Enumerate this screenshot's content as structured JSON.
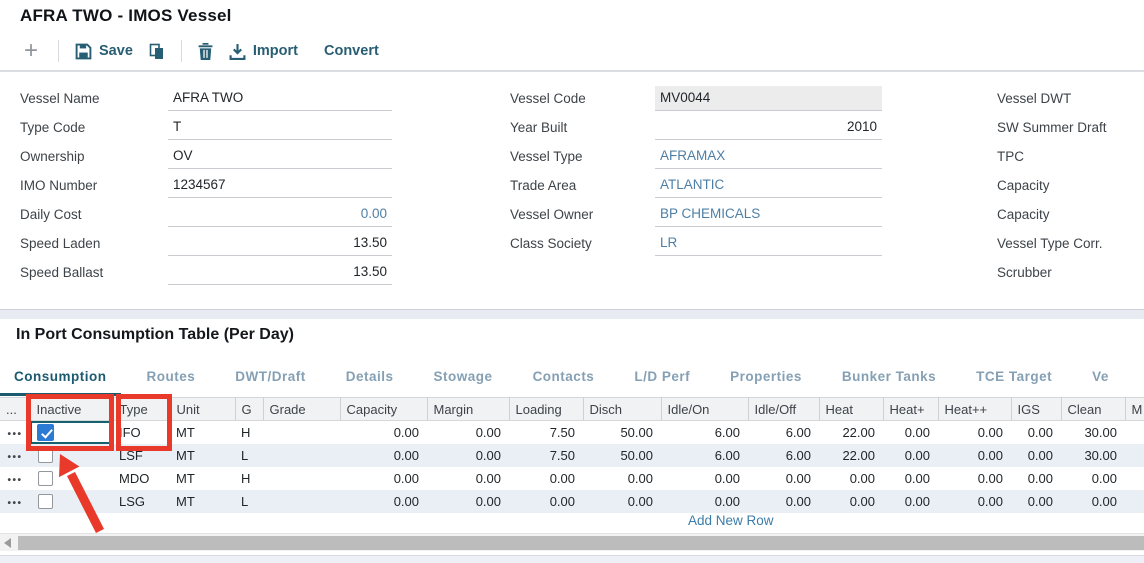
{
  "window": {
    "title": "AFRA TWO - IMOS Vessel"
  },
  "toolbar": {
    "save_label": "Save",
    "import_label": "Import",
    "convert_label": "Convert"
  },
  "form": {
    "left": [
      {
        "label": "Vessel Name",
        "value": "AFRA TWO"
      },
      {
        "label": "Type Code",
        "value": "T"
      },
      {
        "label": "Ownership",
        "value": "OV"
      },
      {
        "label": "IMO Number",
        "value": "1234567"
      },
      {
        "label": "Daily Cost",
        "value": "0.00"
      },
      {
        "label": "Speed Laden",
        "value": "13.50"
      },
      {
        "label": "Speed Ballast",
        "value": "13.50"
      }
    ],
    "middle": [
      {
        "label": "Vessel Code",
        "value": "MV0044"
      },
      {
        "label": "Year Built",
        "value": "2010"
      },
      {
        "label": "Vessel Type",
        "value": "AFRAMAX"
      },
      {
        "label": "Trade Area",
        "value": "ATLANTIC"
      },
      {
        "label": "Vessel Owner",
        "value": "BP CHEMICALS"
      },
      {
        "label": "Class Society",
        "value": "LR"
      }
    ],
    "right_labels": [
      "Vessel DWT",
      "SW Summer Draft",
      "TPC",
      "Capacity",
      "Capacity",
      "Vessel Type Corr.",
      "Scrubber"
    ]
  },
  "section_title": "In Port Consumption Table (Per Day)",
  "tabs": [
    "Consumption",
    "Routes",
    "DWT/Draft",
    "Details",
    "Stowage",
    "Contacts",
    "L/D Perf",
    "Properties",
    "Bunker Tanks",
    "TCE Target",
    "Ve"
  ],
  "active_tab": "Consumption",
  "table": {
    "columns": [
      "...",
      "Inactive",
      "Type",
      "Unit",
      "G",
      "Grade",
      "Capacity",
      "Margin",
      "Loading",
      "Disch",
      "Idle/On",
      "Idle/Off",
      "Heat",
      "Heat+",
      "Heat++",
      "IGS",
      "Clean",
      "M"
    ],
    "rows": [
      {
        "inactive": true,
        "focused": true,
        "cells": [
          "IFO",
          "MT",
          "H",
          "",
          "0.00",
          "0.00",
          "7.50",
          "50.00",
          "6.00",
          "6.00",
          "22.00",
          "0.00",
          "0.00",
          "0.00",
          "30.00",
          ""
        ]
      },
      {
        "inactive": false,
        "focused": false,
        "cells": [
          "LSF",
          "MT",
          "L",
          "",
          "0.00",
          "0.00",
          "7.50",
          "50.00",
          "6.00",
          "6.00",
          "22.00",
          "0.00",
          "0.00",
          "0.00",
          "30.00",
          ""
        ]
      },
      {
        "inactive": false,
        "focused": false,
        "cells": [
          "MDO",
          "MT",
          "H",
          "",
          "0.00",
          "0.00",
          "0.00",
          "0.00",
          "0.00",
          "0.00",
          "0.00",
          "0.00",
          "0.00",
          "0.00",
          "0.00",
          ""
        ]
      },
      {
        "inactive": false,
        "focused": false,
        "cells": [
          "LSG",
          "MT",
          "L",
          "",
          "0.00",
          "0.00",
          "0.00",
          "0.00",
          "0.00",
          "0.00",
          "0.00",
          "0.00",
          "0.00",
          "0.00",
          "0.00",
          ""
        ]
      }
    ],
    "add_row_label": "Add New Row"
  },
  "colors": {
    "toolbar_teal": "#275e73",
    "link_blue": "#4d7fa6",
    "active_tab": "#1c5a6f",
    "inactive_tab": "#85a0b5",
    "annotation_red": "#e8392b",
    "checkbox_blue": "#2b7bd4",
    "row_alt": "#e9eff5",
    "readonly_bg": "#ececec"
  }
}
